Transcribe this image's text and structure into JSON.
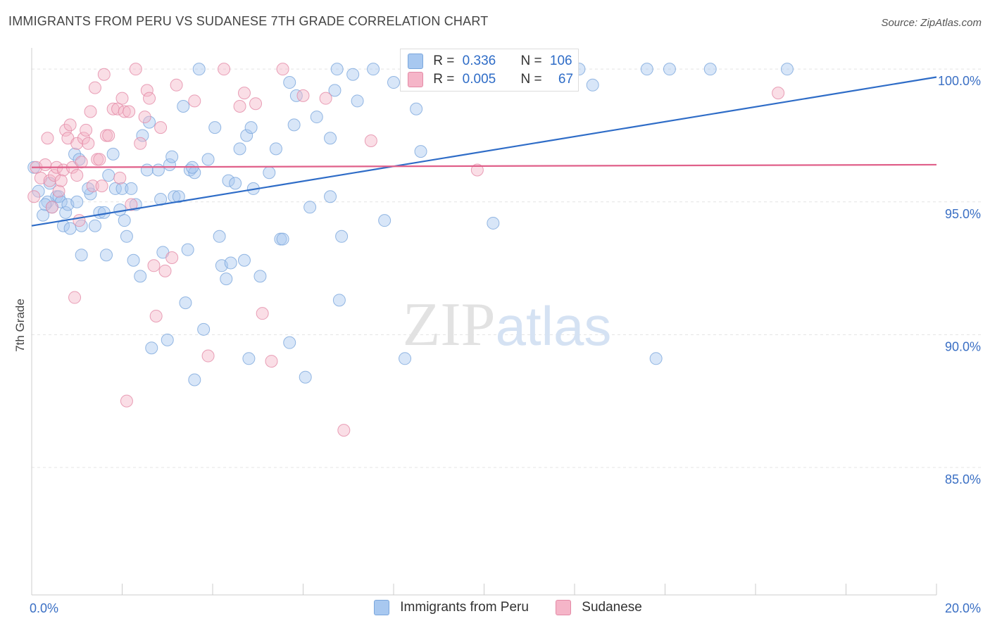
{
  "chart_data": {
    "type": "scatter",
    "title": "IMMIGRANTS FROM PERU VS SUDANESE 7TH GRADE CORRELATION CHART",
    "source": "Source: ZipAtlas.com",
    "ylabel": "7th Grade",
    "xlabel": "",
    "xlim": [
      0,
      20
    ],
    "ylim": [
      80.2,
      100.8
    ],
    "x_tick_labels": [
      "0.0%",
      "20.0%"
    ],
    "y_ticks": [
      {
        "value": 100,
        "label": "100.0%"
      },
      {
        "value": 95,
        "label": "95.0%"
      },
      {
        "value": 90,
        "label": "90.0%"
      },
      {
        "value": 85,
        "label": "85.0%"
      }
    ],
    "watermark": "ZIPatlas",
    "legend": {
      "rows": [
        {
          "r_label": "R =",
          "r_value": "0.336",
          "n_label": "N =",
          "n_value": "106",
          "color": "#a8c8f0"
        },
        {
          "r_label": "R =",
          "r_value": "0.005",
          "n_label": "N =",
          "n_value": "67",
          "color": "#f5b5c8"
        }
      ]
    },
    "series": [
      {
        "name": "Immigrants from Peru",
        "color": "#a8c8f0",
        "edge_color": "#7aa6dc",
        "line_color": "#2e6cc7",
        "trend": {
          "x": [
            0,
            20
          ],
          "y": [
            94.1,
            99.7
          ]
        },
        "points": [
          [
            0.05,
            96.3
          ],
          [
            0.15,
            95.4
          ],
          [
            0.25,
            94.5
          ],
          [
            0.35,
            95.0
          ],
          [
            0.4,
            95.7
          ],
          [
            0.45,
            94.8
          ],
          [
            0.55,
            95.2
          ],
          [
            0.6,
            95.2
          ],
          [
            0.65,
            95.0
          ],
          [
            0.7,
            94.1
          ],
          [
            0.75,
            94.6
          ],
          [
            0.8,
            94.9
          ],
          [
            0.85,
            94.0
          ],
          [
            0.95,
            96.8
          ],
          [
            1.05,
            96.6
          ],
          [
            1.1,
            94.1
          ],
          [
            1.1,
            93.0
          ],
          [
            1.3,
            95.3
          ],
          [
            1.25,
            95.5
          ],
          [
            1.4,
            94.1
          ],
          [
            1.5,
            94.6
          ],
          [
            1.6,
            94.6
          ],
          [
            1.65,
            93.0
          ],
          [
            1.7,
            96.0
          ],
          [
            1.8,
            96.8
          ],
          [
            1.85,
            95.5
          ],
          [
            1.95,
            94.7
          ],
          [
            2.0,
            95.5
          ],
          [
            2.05,
            94.3
          ],
          [
            2.1,
            93.7
          ],
          [
            2.2,
            95.5
          ],
          [
            2.25,
            92.8
          ],
          [
            2.3,
            94.9
          ],
          [
            2.4,
            92.2
          ],
          [
            2.45,
            97.5
          ],
          [
            2.55,
            96.2
          ],
          [
            2.6,
            98.0
          ],
          [
            2.65,
            89.5
          ],
          [
            2.8,
            96.2
          ],
          [
            2.85,
            95.1
          ],
          [
            2.9,
            93.1
          ],
          [
            3.0,
            89.8
          ],
          [
            3.05,
            96.4
          ],
          [
            3.1,
            96.7
          ],
          [
            3.15,
            95.2
          ],
          [
            3.25,
            95.2
          ],
          [
            3.35,
            98.6
          ],
          [
            3.4,
            91.2
          ],
          [
            3.45,
            93.2
          ],
          [
            3.5,
            96.2
          ],
          [
            3.6,
            96.1
          ],
          [
            3.6,
            88.3
          ],
          [
            3.7,
            100.0
          ],
          [
            3.8,
            90.2
          ],
          [
            3.9,
            96.6
          ],
          [
            4.05,
            97.8
          ],
          [
            4.15,
            93.7
          ],
          [
            4.2,
            92.6
          ],
          [
            4.3,
            92.1
          ],
          [
            4.35,
            95.8
          ],
          [
            4.4,
            92.7
          ],
          [
            4.5,
            95.7
          ],
          [
            4.6,
            97.0
          ],
          [
            4.7,
            92.8
          ],
          [
            4.75,
            97.5
          ],
          [
            4.8,
            89.1
          ],
          [
            4.85,
            97.8
          ],
          [
            4.9,
            95.5
          ],
          [
            5.05,
            92.2
          ],
          [
            5.25,
            96.1
          ],
          [
            5.4,
            97.0
          ],
          [
            5.5,
            93.6
          ],
          [
            5.55,
            93.6
          ],
          [
            5.7,
            89.7
          ],
          [
            5.8,
            97.9
          ],
          [
            5.85,
            99.0
          ],
          [
            6.05,
            88.4
          ],
          [
            6.15,
            94.8
          ],
          [
            6.3,
            98.2
          ],
          [
            6.6,
            95.2
          ],
          [
            6.6,
            97.4
          ],
          [
            6.7,
            99.2
          ],
          [
            6.8,
            91.3
          ],
          [
            6.85,
            93.7
          ],
          [
            6.75,
            100.0
          ],
          [
            7.1,
            99.8
          ],
          [
            7.2,
            98.8
          ],
          [
            7.55,
            100.0
          ],
          [
            7.8,
            94.3
          ],
          [
            8.0,
            99.5
          ],
          [
            8.25,
            89.1
          ],
          [
            8.5,
            98.5
          ],
          [
            8.6,
            96.9
          ],
          [
            9.3,
            100.0
          ],
          [
            10.2,
            94.2
          ],
          [
            12.1,
            100.0
          ],
          [
            12.4,
            99.4
          ],
          [
            13.6,
            100.0
          ],
          [
            13.8,
            89.1
          ],
          [
            14.1,
            100.0
          ],
          [
            15.0,
            100.0
          ],
          [
            16.7,
            100.0
          ],
          [
            0.3,
            94.9
          ],
          [
            1.0,
            95.0
          ],
          [
            3.55,
            96.3
          ],
          [
            5.7,
            99.5
          ]
        ]
      },
      {
        "name": "Sudanese",
        "color": "#f5b5c8",
        "edge_color": "#e48aa6",
        "line_color": "#e0608a",
        "trend": {
          "x": [
            0,
            20
          ],
          "y": [
            96.3,
            96.4
          ]
        },
        "points": [
          [
            0.05,
            95.2
          ],
          [
            0.1,
            96.3
          ],
          [
            0.2,
            95.9
          ],
          [
            0.3,
            96.4
          ],
          [
            0.35,
            97.4
          ],
          [
            0.4,
            95.8
          ],
          [
            0.5,
            96.0
          ],
          [
            0.55,
            96.3
          ],
          [
            0.6,
            95.4
          ],
          [
            0.7,
            96.2
          ],
          [
            0.75,
            97.7
          ],
          [
            0.8,
            97.4
          ],
          [
            0.85,
            97.9
          ],
          [
            0.9,
            96.3
          ],
          [
            0.95,
            91.4
          ],
          [
            1.0,
            97.2
          ],
          [
            1.05,
            94.3
          ],
          [
            1.1,
            96.5
          ],
          [
            1.15,
            97.4
          ],
          [
            1.2,
            97.7
          ],
          [
            1.25,
            97.2
          ],
          [
            1.3,
            98.4
          ],
          [
            1.35,
            95.6
          ],
          [
            1.4,
            99.3
          ],
          [
            1.45,
            96.6
          ],
          [
            1.5,
            96.6
          ],
          [
            1.55,
            95.6
          ],
          [
            1.6,
            99.8
          ],
          [
            1.65,
            97.5
          ],
          [
            1.7,
            97.5
          ],
          [
            1.8,
            98.5
          ],
          [
            1.9,
            98.5
          ],
          [
            1.95,
            95.9
          ],
          [
            2.0,
            98.9
          ],
          [
            2.05,
            98.4
          ],
          [
            2.1,
            87.5
          ],
          [
            2.15,
            98.4
          ],
          [
            2.2,
            94.9
          ],
          [
            2.3,
            100.0
          ],
          [
            2.4,
            97.2
          ],
          [
            2.5,
            98.2
          ],
          [
            2.55,
            99.2
          ],
          [
            2.6,
            98.9
          ],
          [
            2.7,
            92.6
          ],
          [
            2.75,
            90.7
          ],
          [
            2.85,
            97.8
          ],
          [
            2.95,
            92.4
          ],
          [
            3.1,
            92.9
          ],
          [
            3.2,
            99.4
          ],
          [
            3.6,
            98.8
          ],
          [
            3.9,
            89.2
          ],
          [
            4.25,
            100.0
          ],
          [
            4.6,
            98.6
          ],
          [
            4.7,
            99.1
          ],
          [
            4.95,
            98.7
          ],
          [
            5.1,
            90.8
          ],
          [
            5.3,
            89.0
          ],
          [
            5.55,
            100.0
          ],
          [
            6.0,
            99.0
          ],
          [
            6.5,
            98.9
          ],
          [
            6.9,
            86.4
          ],
          [
            7.5,
            97.3
          ],
          [
            9.85,
            96.2
          ],
          [
            16.5,
            99.1
          ],
          [
            0.45,
            94.8
          ],
          [
            0.65,
            95.8
          ],
          [
            1.0,
            96.0
          ]
        ]
      }
    ]
  }
}
